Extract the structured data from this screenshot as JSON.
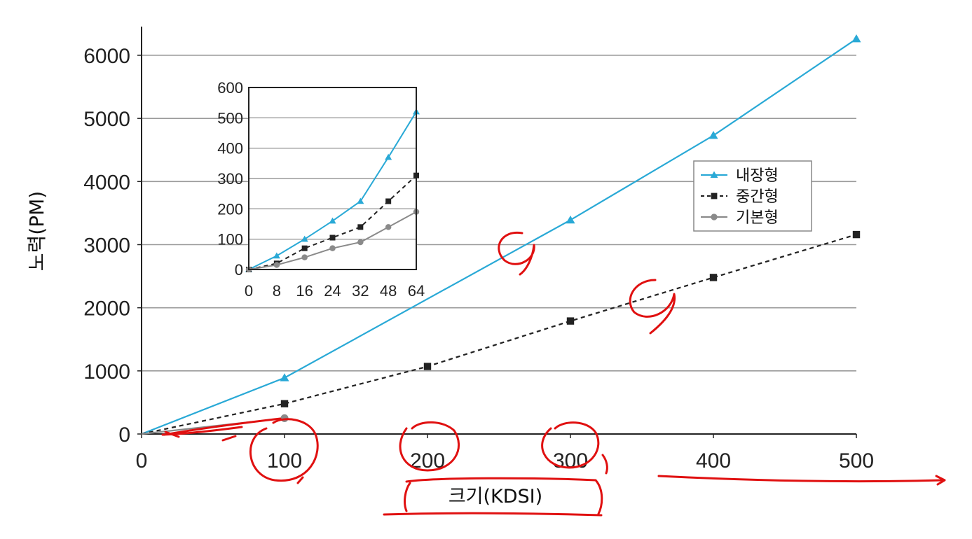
{
  "chart_data": [
    {
      "type": "line",
      "x": [
        0,
        100,
        200,
        300,
        400,
        500
      ],
      "series": [
        {
          "name": "내장형",
          "color": "#29a9d6",
          "marker": "triangle",
          "dash": "solid",
          "values": [
            0,
            890,
            null,
            3390,
            4730,
            6260
          ]
        },
        {
          "name": "중간형",
          "color": "#222222",
          "marker": "square",
          "dash": "dashed",
          "values": [
            0,
            480,
            1070,
            1790,
            2480,
            3160
          ]
        },
        {
          "name": "기본형",
          "color": "#8a8a8a",
          "marker": "circle",
          "dash": "solid",
          "values": [
            0,
            250,
            null,
            null,
            null,
            null
          ]
        }
      ],
      "xlabel": "크기(KDSI)",
      "ylabel": "노력(PM)",
      "xlim": [
        0,
        500
      ],
      "ylim": [
        0,
        6000
      ],
      "xticks": [
        "0",
        "100",
        "200",
        "300",
        "400",
        "500"
      ],
      "yticks": [
        "0",
        "1000",
        "2000",
        "3000",
        "4000",
        "5000",
        "6000"
      ],
      "grid": "horizontal",
      "legend": "right",
      "legend_entries": [
        "내장형",
        "중간형",
        "기본형"
      ]
    },
    {
      "type": "line",
      "x": [
        "0",
        "8",
        "16",
        "24",
        "32",
        "48",
        "64"
      ],
      "series": [
        {
          "name": "내장형",
          "color": "#29a9d6",
          "marker": "triangle",
          "dash": "solid",
          "values": [
            0,
            45,
            100,
            160,
            225,
            370,
            520
          ]
        },
        {
          "name": "중간형",
          "color": "#222222",
          "marker": "square",
          "dash": "dashed",
          "values": [
            0,
            20,
            70,
            105,
            140,
            225,
            310
          ]
        },
        {
          "name": "기본형",
          "color": "#8a8a8a",
          "marker": "circle",
          "dash": "solid",
          "values": [
            0,
            15,
            40,
            70,
            90,
            140,
            190
          ]
        }
      ],
      "ylim": [
        0,
        600
      ],
      "yticks": [
        "0",
        "100",
        "200",
        "300",
        "400",
        "500",
        "600"
      ],
      "grid": "horizontal",
      "inset": true
    }
  ]
}
